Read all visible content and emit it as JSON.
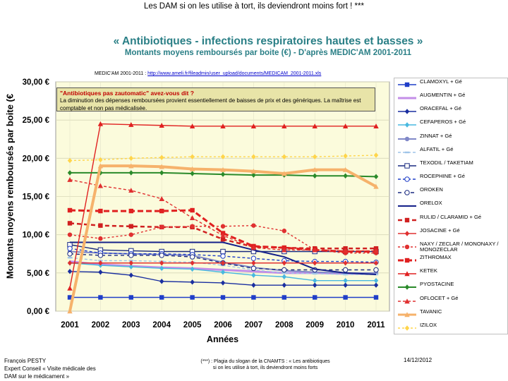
{
  "header": {
    "caption": "Les DAM si on les utilise à tort, ils deviendront moins fort ! ***"
  },
  "chart_data": {
    "type": "line",
    "title": "« Antibiotiques - infections respiratoires hautes et basses »",
    "subtitle": "Montants moyens remboursés par boite (€) - D'après MEDIC'AM 2001-2011",
    "source_prefix": "MEDIC'AM 2001-2011 : ",
    "source_link": "http://www.ameli.fr/fileadmin/user_upload/documents/MEDICAM_2001-2011.xls",
    "xlabel": "Années",
    "ylabel": "Montants moyens remboursés par boite (€",
    "ylim": [
      0,
      30
    ],
    "y_ticks": [
      0,
      5,
      10,
      15,
      20,
      25,
      30
    ],
    "y_tick_labels": [
      "0,00 €",
      "5,00 €",
      "10,00 €",
      "15,00 €",
      "20,00 €",
      "25,00 €",
      "30,00 €"
    ],
    "x": [
      "2001",
      "2002",
      "2003",
      "2004",
      "2005",
      "2006",
      "2007",
      "2008",
      "2009",
      "2010",
      "2011"
    ],
    "plot_background": "#fbfbdc",
    "series": [
      {
        "name": "CLAMOXYL + Gé",
        "color": "#1f3ec8",
        "dash": "",
        "marker": "square",
        "values": [
          1.8,
          1.8,
          1.8,
          1.8,
          1.8,
          1.8,
          1.8,
          1.8,
          1.8,
          1.8,
          1.8
        ]
      },
      {
        "name": "AUGMENTIN + Gé",
        "color": "#c38ee8",
        "dash": "",
        "marker": "none",
        "width": 3,
        "values": [
          6.5,
          6.1,
          5.9,
          5.7,
          5.6,
          5.4,
          5.2,
          5.0,
          5.0,
          4.9,
          4.9
        ]
      },
      {
        "name": "ORACEFAL + Gé",
        "color": "#1a2fa0",
        "dash": "",
        "marker": "diamond",
        "values": [
          5.2,
          5.1,
          4.7,
          3.9,
          3.8,
          3.7,
          3.4,
          3.4,
          3.4,
          3.4,
          3.4
        ]
      },
      {
        "name": "CEFAPEROS + Gé",
        "color": "#48b9e0",
        "dash": "",
        "marker": "diamond",
        "values": [
          6.3,
          6.0,
          5.8,
          5.6,
          5.5,
          5.1,
          4.7,
          4.5,
          4.0,
          4.0,
          4.0
        ]
      },
      {
        "name": "ZINNAT + Gé",
        "color": "#8088c8",
        "dash": "",
        "marker": "circle",
        "width": 2,
        "values": [
          7.8,
          7.6,
          7.5,
          7.4,
          7.3,
          6.4,
          5.7,
          5.3,
          5.1,
          5.0,
          5.0
        ]
      },
      {
        "name": "ALFATIL + Gé",
        "color": "#9fc4e8",
        "dash": "4,3",
        "marker": "dash",
        "values": [
          7.0,
          6.6,
          6.6,
          6.5,
          6.4,
          6.0,
          5.4,
          5.0,
          4.9,
          4.8,
          4.8
        ]
      },
      {
        "name": "TEXODIL / TAKETIAM",
        "color": "#1a2a80",
        "dash": "",
        "marker": "square-open",
        "values": [
          8.7,
          8.0,
          7.9,
          7.8,
          7.8,
          7.8,
          7.8,
          7.8,
          7.8,
          7.8,
          7.8
        ]
      },
      {
        "name": "ROCEPHINE + Gé",
        "color": "#1f3ec8",
        "dash": "4,3",
        "marker": "circle-open",
        "values": [
          8.2,
          7.6,
          7.5,
          7.5,
          7.4,
          7.2,
          6.9,
          6.6,
          6.5,
          6.5,
          6.4
        ]
      },
      {
        "name": "OROKEN",
        "color": "#1a2a80",
        "dash": "5,4",
        "marker": "circle-open",
        "values": [
          7.5,
          7.3,
          7.3,
          7.3,
          7.1,
          6.3,
          5.6,
          5.4,
          5.4,
          5.4,
          5.4
        ]
      },
      {
        "name": "ORELOX",
        "color": "#14208a",
        "dash": "",
        "marker": "none",
        "width": 2,
        "values": [
          9.0,
          9.0,
          9.0,
          9.0,
          9.0,
          9.0,
          8.0,
          7.1,
          5.5,
          5.0,
          4.8
        ]
      },
      {
        "name": "RULID / CLARAMID + Gé",
        "color": "#d02020",
        "dash": "6,4",
        "marker": "square",
        "width": 2.5,
        "values": [
          11.5,
          11.2,
          11.1,
          11.0,
          11.0,
          9.4,
          8.4,
          8.3,
          8.2,
          8.2,
          8.2
        ]
      },
      {
        "name": "JOSACINE + Gé",
        "color": "#e03030",
        "dash": "",
        "marker": "diamond",
        "values": [
          6.3,
          6.3,
          6.3,
          6.3,
          6.3,
          6.3,
          6.3,
          6.3,
          6.3,
          6.3,
          6.3
        ]
      },
      {
        "name": "NAXY / ZECLAR / MONONAXY / MONOZECLAR",
        "color": "#e03030",
        "dash": "3,3",
        "marker": "circle",
        "values": [
          10.0,
          9.5,
          10.0,
          11.0,
          11.1,
          11.1,
          11.2,
          10.5,
          8.0,
          7.6,
          7.6
        ]
      },
      {
        "name": "ZITHROMAX",
        "color": "#e02020",
        "dash": "8,4",
        "marker": "square",
        "width": 3,
        "values": [
          13.2,
          13.1,
          13.1,
          13.1,
          13.2,
          10.2,
          8.5,
          8.3,
          8.0,
          7.8,
          7.8
        ]
      },
      {
        "name": "KETEK",
        "color": "#e02020",
        "dash": "",
        "marker": "triangle",
        "values": [
          3.0,
          24.5,
          24.4,
          24.3,
          24.2,
          24.2,
          24.2,
          24.2,
          24.2,
          24.2,
          24.2
        ]
      },
      {
        "name": "PYOSTACINE",
        "color": "#2a8a2a",
        "dash": "",
        "marker": "diamond",
        "width": 2,
        "values": [
          18.1,
          18.1,
          18.1,
          18.1,
          18.0,
          17.9,
          17.8,
          17.8,
          17.7,
          17.7,
          17.6
        ]
      },
      {
        "name": "OFLOCET + Gé",
        "color": "#e03030",
        "dash": "4,3",
        "marker": "triangle",
        "values": [
          17.2,
          16.4,
          15.8,
          14.7,
          12.2,
          9.9,
          8.3,
          8.0,
          8.0,
          7.9,
          7.9
        ]
      },
      {
        "name": "TAVANIC",
        "color": "#f6b26b",
        "dash": "",
        "marker": "triangle",
        "width": 4,
        "values": [
          0.0,
          19.0,
          19.0,
          18.9,
          18.6,
          18.5,
          18.3,
          18.0,
          18.5,
          18.5,
          16.3
        ]
      },
      {
        "name": "IZILOX",
        "color": "#ffd54a",
        "dash": "3,3",
        "marker": "diamond",
        "values": [
          19.7,
          19.8,
          20.0,
          20.1,
          20.2,
          20.2,
          20.2,
          20.2,
          20.2,
          20.3,
          20.4
        ]
      }
    ]
  },
  "note": {
    "title": "\"Antibiotiques pas zautomatic\" avez-vous dit ?",
    "body": "La diminution des dépenses remboursées provient essentiellement de baisses de prix et des génériques. La maîtrise est comptable et non pas médicalisée."
  },
  "footer": {
    "author_line1": "François PESTY",
    "author_line2": "Expert Conseil « Visite médicale des",
    "author_line3": "DAM sur le médicament »",
    "footnote_line1": "(***) : Plagia du slogan de la CNAMTS : « Les antibiotiques",
    "footnote_line2": "si on les utilise à tort, ils deviendront moins forts",
    "date": "14/12/2012"
  }
}
